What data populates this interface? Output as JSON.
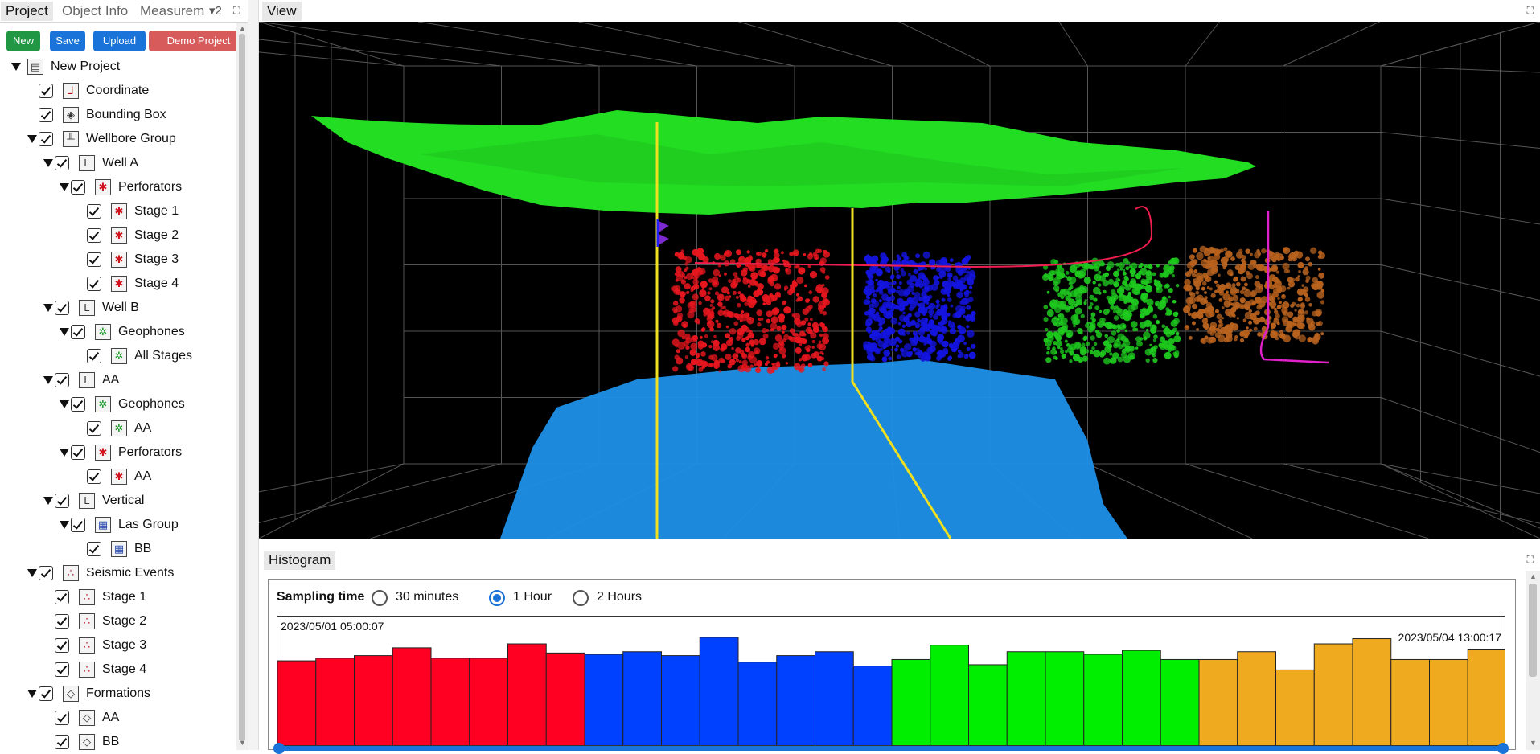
{
  "tabs": [
    {
      "label": "Project",
      "active": true
    },
    {
      "label": "Object Info",
      "active": false
    },
    {
      "label": "Measurem",
      "active": false
    }
  ],
  "tabs_overflow": "▾2",
  "buttons": {
    "new": "New",
    "save": "Save",
    "upload": "Upload",
    "demo": "Demo Project"
  },
  "tree": [
    {
      "label": "New Project",
      "depth": 0,
      "expandable": true,
      "checkbox": false,
      "icon": "project-icon"
    },
    {
      "label": "Coordinate",
      "depth": 1,
      "expandable": false,
      "checkbox": true,
      "icon": "axes-icon"
    },
    {
      "label": "Bounding Box",
      "depth": 1,
      "expandable": false,
      "checkbox": true,
      "icon": "cube-icon"
    },
    {
      "label": "Wellbore Group",
      "depth": 1,
      "expandable": true,
      "checkbox": true,
      "icon": "wellbore-group-icon"
    },
    {
      "label": "Well A",
      "depth": 2,
      "expandable": true,
      "checkbox": true,
      "icon": "well-icon"
    },
    {
      "label": "Perforators",
      "depth": 3,
      "expandable": true,
      "checkbox": true,
      "icon": "perforator-icon"
    },
    {
      "label": "Stage 1",
      "depth": 4,
      "expandable": false,
      "checkbox": true,
      "icon": "perforator-icon"
    },
    {
      "label": "Stage 2",
      "depth": 4,
      "expandable": false,
      "checkbox": true,
      "icon": "perforator-icon"
    },
    {
      "label": "Stage 3",
      "depth": 4,
      "expandable": false,
      "checkbox": true,
      "icon": "perforator-icon"
    },
    {
      "label": "Stage 4",
      "depth": 4,
      "expandable": false,
      "checkbox": true,
      "icon": "perforator-icon"
    },
    {
      "label": "Well B",
      "depth": 2,
      "expandable": true,
      "checkbox": true,
      "icon": "well-icon"
    },
    {
      "label": "Geophones",
      "depth": 3,
      "expandable": true,
      "checkbox": true,
      "icon": "geophone-icon"
    },
    {
      "label": "All Stages",
      "depth": 4,
      "expandable": false,
      "checkbox": true,
      "icon": "geophone-icon"
    },
    {
      "label": "AA",
      "depth": 2,
      "expandable": true,
      "checkbox": true,
      "icon": "well-icon"
    },
    {
      "label": "Geophones",
      "depth": 3,
      "expandable": true,
      "checkbox": true,
      "icon": "geophone-icon"
    },
    {
      "label": "AA",
      "depth": 4,
      "expandable": false,
      "checkbox": true,
      "icon": "geophone-icon"
    },
    {
      "label": "Perforators",
      "depth": 3,
      "expandable": true,
      "checkbox": true,
      "icon": "perforator-icon"
    },
    {
      "label": "AA",
      "depth": 4,
      "expandable": false,
      "checkbox": true,
      "icon": "perforator-icon"
    },
    {
      "label": "Vertical",
      "depth": 2,
      "expandable": true,
      "checkbox": true,
      "icon": "well-icon"
    },
    {
      "label": "Las Group",
      "depth": 3,
      "expandable": true,
      "checkbox": true,
      "icon": "las-icon"
    },
    {
      "label": "BB",
      "depth": 4,
      "expandable": false,
      "checkbox": true,
      "icon": "las-icon"
    },
    {
      "label": "Seismic Events",
      "depth": 1,
      "expandable": true,
      "checkbox": true,
      "icon": "events-icon"
    },
    {
      "label": "Stage 1",
      "depth": 2,
      "expandable": false,
      "checkbox": true,
      "icon": "events-icon"
    },
    {
      "label": "Stage 2",
      "depth": 2,
      "expandable": false,
      "checkbox": true,
      "icon": "events-icon"
    },
    {
      "label": "Stage 3",
      "depth": 2,
      "expandable": false,
      "checkbox": true,
      "icon": "events-icon"
    },
    {
      "label": "Stage 4",
      "depth": 2,
      "expandable": false,
      "checkbox": true,
      "icon": "events-icon"
    },
    {
      "label": "Formations",
      "depth": 1,
      "expandable": true,
      "checkbox": true,
      "icon": "formation-icon"
    },
    {
      "label": "AA",
      "depth": 2,
      "expandable": false,
      "checkbox": true,
      "icon": "formation-icon"
    },
    {
      "label": "BB",
      "depth": 2,
      "expandable": false,
      "checkbox": true,
      "icon": "formation-icon"
    }
  ],
  "view": {
    "title": "View"
  },
  "scene": {
    "background": "#000000",
    "top_surface_color": "#22dd22",
    "bottom_surface_color": "#1e90e8",
    "stage_colors": [
      "#e8161e",
      "#1414e0",
      "#1ec81e",
      "#b8621e"
    ],
    "well_color": "#f0e020",
    "trajectory_colors": [
      "#f01e50",
      "#e020c8"
    ]
  },
  "histogram": {
    "title": "Histogram",
    "sampling_label": "Sampling time",
    "options": [
      {
        "label": "30 minutes",
        "selected": false
      },
      {
        "label": "1 Hour",
        "selected": true
      },
      {
        "label": "2 Hours",
        "selected": false
      }
    ],
    "start_time": "2023/05/01 05:00:07",
    "end_time": "2023/05/04 13:00:17"
  },
  "chart_data": {
    "type": "bar",
    "title": "",
    "xlabel": "",
    "ylabel": "",
    "series": [
      {
        "values": [
          66,
          68,
          70,
          76,
          68,
          68,
          79,
          72
        ],
        "color": "#ff0022"
      },
      {
        "values": [
          71,
          73,
          70,
          84,
          65,
          70,
          73,
          62
        ],
        "color": "#0040ff"
      },
      {
        "values": [
          67,
          78,
          63,
          73,
          73,
          71,
          74,
          67
        ],
        "color": "#00ee00"
      },
      {
        "values": [
          67,
          73,
          59,
          79,
          83,
          67,
          67,
          75
        ],
        "color": "#f0aa20"
      }
    ],
    "ylim": [
      0,
      100
    ]
  }
}
